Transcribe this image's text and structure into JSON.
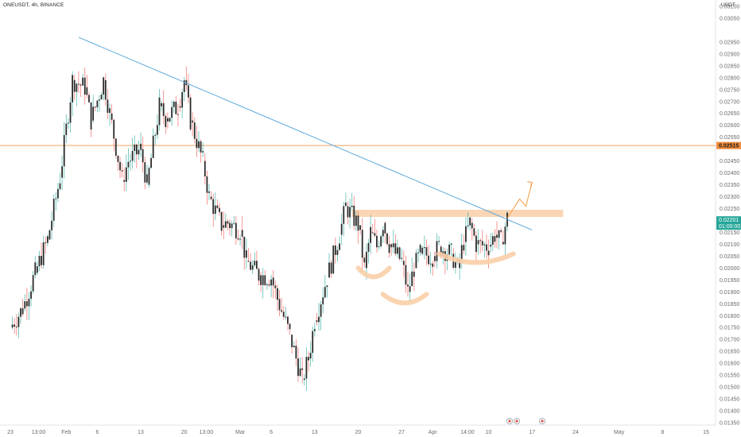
{
  "header": {
    "symbol": "ONEUSDT",
    "interval": "4h",
    "exchange": "BINANCE",
    "currency": "USDT"
  },
  "colors": {
    "up": "#26a69a",
    "down": "#ef5350",
    "candle_body": "#2b2b2b",
    "trendline": "#5aa9dc",
    "hline": "#f2a35e",
    "zone": "#f9cfa8",
    "arc": "#f9cfa8",
    "projection": "#f59a3f",
    "current_price_bg": "#26a69a",
    "level_label_bg": "#f08c3c"
  },
  "chart_data": {
    "type": "candlestick",
    "title": "",
    "y_axis": {
      "min": 0.0135,
      "max": 0.031,
      "ticks": [
        "0.03100",
        "0.03050",
        "0.02950",
        "0.02900",
        "0.02850",
        "0.02800",
        "0.02750",
        "0.02700",
        "0.02650",
        "0.02600",
        "0.02550",
        "0.02450",
        "0.02400",
        "0.02350",
        "0.02300",
        "0.02250",
        "0.02150",
        "0.02100",
        "0.02050",
        "0.02000",
        "0.01950",
        "0.01900",
        "0.01850",
        "0.01800",
        "0.01750",
        "0.01700",
        "0.01650",
        "0.01600",
        "0.01550",
        "0.01500",
        "0.01450",
        "0.01400",
        "0.01350"
      ]
    },
    "x_axis": {
      "start": "2023-01-23",
      "end": "2023-05-15",
      "ticks": [
        {
          "date": "2023-01-23",
          "label": "23"
        },
        {
          "date": "2023-01-27T13:00",
          "label": "13:00"
        },
        {
          "date": "2023-02-01",
          "label": "Feb"
        },
        {
          "date": "2023-02-06",
          "label": "6"
        },
        {
          "date": "2023-02-13",
          "label": "13"
        },
        {
          "date": "2023-02-20",
          "label": "20"
        },
        {
          "date": "2023-02-23T13:00",
          "label": "13:00"
        },
        {
          "date": "2023-03-01",
          "label": "Mar"
        },
        {
          "date": "2023-03-06",
          "label": "6"
        },
        {
          "date": "2023-03-13",
          "label": "13"
        },
        {
          "date": "2023-03-20",
          "label": "20"
        },
        {
          "date": "2023-03-27",
          "label": "27"
        },
        {
          "date": "2023-04-01",
          "label": "Apr"
        },
        {
          "date": "2023-04-06T14:00",
          "label": "14:00"
        },
        {
          "date": "2023-04-10",
          "label": "10"
        },
        {
          "date": "2023-04-17",
          "label": "17"
        },
        {
          "date": "2023-04-24",
          "label": "24"
        },
        {
          "date": "2023-05-01",
          "label": "May"
        },
        {
          "date": "2023-05-08",
          "label": "8"
        },
        {
          "date": "2023-05-15",
          "label": "15"
        }
      ]
    },
    "price_path": [
      {
        "x": "2023-01-23",
        "y": 0.0175
      },
      {
        "x": "2023-01-25",
        "y": 0.0183
      },
      {
        "x": "2023-01-27",
        "y": 0.0198
      },
      {
        "x": "2023-01-29",
        "y": 0.0212
      },
      {
        "x": "2023-01-31",
        "y": 0.0238
      },
      {
        "x": "2023-02-02",
        "y": 0.0279
      },
      {
        "x": "2023-02-04",
        "y": 0.0276
      },
      {
        "x": "2023-02-05",
        "y": 0.0262
      },
      {
        "x": "2023-02-07",
        "y": 0.0279
      },
      {
        "x": "2023-02-08",
        "y": 0.0265
      },
      {
        "x": "2023-02-10",
        "y": 0.0237
      },
      {
        "x": "2023-02-11",
        "y": 0.0245
      },
      {
        "x": "2023-02-13",
        "y": 0.025
      },
      {
        "x": "2023-02-14",
        "y": 0.0235
      },
      {
        "x": "2023-02-16",
        "y": 0.0268
      },
      {
        "x": "2023-02-17",
        "y": 0.0263
      },
      {
        "x": "2023-02-19",
        "y": 0.0268
      },
      {
        "x": "2023-02-20",
        "y": 0.0279
      },
      {
        "x": "2023-02-21",
        "y": 0.0262
      },
      {
        "x": "2023-02-23",
        "y": 0.0245
      },
      {
        "x": "2023-02-24",
        "y": 0.023
      },
      {
        "x": "2023-02-26",
        "y": 0.0218
      },
      {
        "x": "2023-02-27",
        "y": 0.0219
      },
      {
        "x": "2023-03-01",
        "y": 0.0216
      },
      {
        "x": "2023-03-02",
        "y": 0.0203
      },
      {
        "x": "2023-03-04",
        "y": 0.0197
      },
      {
        "x": "2023-03-06",
        "y": 0.0196
      },
      {
        "x": "2023-03-07",
        "y": 0.0187
      },
      {
        "x": "2023-03-09",
        "y": 0.0172
      },
      {
        "x": "2023-03-10",
        "y": 0.0162
      },
      {
        "x": "2023-03-11",
        "y": 0.0153
      },
      {
        "x": "2023-03-12",
        "y": 0.0162
      },
      {
        "x": "2023-03-13",
        "y": 0.0178
      },
      {
        "x": "2023-03-15",
        "y": 0.0196
      },
      {
        "x": "2023-03-17",
        "y": 0.0214
      },
      {
        "x": "2023-03-18",
        "y": 0.0226
      },
      {
        "x": "2023-03-20",
        "y": 0.0218
      },
      {
        "x": "2023-03-21",
        "y": 0.02
      },
      {
        "x": "2023-03-22",
        "y": 0.0215
      },
      {
        "x": "2023-03-23",
        "y": 0.0209
      },
      {
        "x": "2023-03-24",
        "y": 0.0219
      },
      {
        "x": "2023-03-25",
        "y": 0.021
      },
      {
        "x": "2023-03-26",
        "y": 0.0206
      },
      {
        "x": "2023-03-27",
        "y": 0.0203
      },
      {
        "x": "2023-03-28",
        "y": 0.019
      },
      {
        "x": "2023-03-29",
        "y": 0.02
      },
      {
        "x": "2023-03-30",
        "y": 0.0206
      },
      {
        "x": "2023-04-01",
        "y": 0.0205
      },
      {
        "x": "2023-04-02",
        "y": 0.0209
      },
      {
        "x": "2023-04-04",
        "y": 0.0206
      },
      {
        "x": "2023-04-05",
        "y": 0.02
      },
      {
        "x": "2023-04-06",
        "y": 0.0211
      },
      {
        "x": "2023-04-07",
        "y": 0.0219
      },
      {
        "x": "2023-04-08",
        "y": 0.021
      },
      {
        "x": "2023-04-10",
        "y": 0.0209
      },
      {
        "x": "2023-04-11",
        "y": 0.0214
      },
      {
        "x": "2023-04-12",
        "y": 0.0211
      },
      {
        "x": "2023-04-13",
        "y": 0.0221
      }
    ],
    "price_label_level": {
      "value": 0.02515,
      "label": "0.02515"
    },
    "current_price": {
      "label": "0.02201",
      "timer": "01:00:00"
    },
    "annotations": {
      "trendline": [
        {
          "x": "2023-02-03",
          "y": 0.0297
        },
        {
          "x": "2023-04-17",
          "y": 0.0216
        }
      ],
      "resistance_zone": {
        "x_from": "2023-03-19",
        "x_to": "2023-04-22",
        "y_from": 0.02215,
        "y_to": 0.02245
      },
      "projection": [
        {
          "x": "2023-04-13",
          "y": 0.0221
        },
        {
          "x": "2023-04-15",
          "y": 0.0229
        },
        {
          "x": "2023-04-16",
          "y": 0.0226
        },
        {
          "x": "2023-04-17",
          "y": 0.0236
        }
      ],
      "shoulder_arcs": [
        {
          "x_from": "2023-03-20",
          "x_to": "2023-03-25",
          "y": 0.0198
        },
        {
          "x_from": "2023-03-24",
          "x_to": "2023-03-31",
          "y": 0.0187
        },
        {
          "x_from": "2023-04-02",
          "x_to": "2023-04-14",
          "y": 0.0204
        }
      ]
    }
  }
}
